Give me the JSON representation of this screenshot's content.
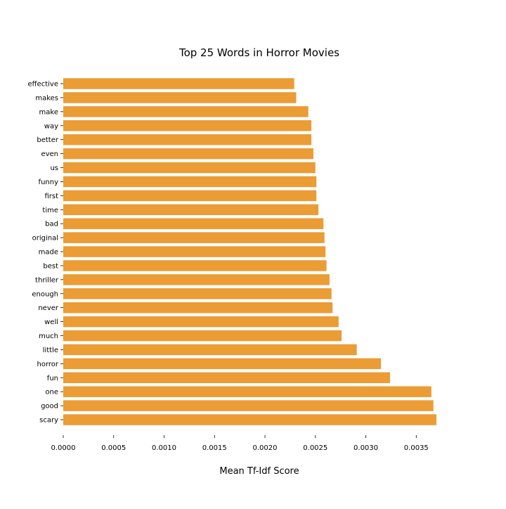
{
  "chart_data": {
    "type": "bar",
    "orientation": "horizontal",
    "title": "Top 25 Words in Horror Movies",
    "xlabel": "Mean Tf-Idf Score",
    "ylabel": "",
    "xlim": [
      0,
      0.0037
    ],
    "xticks": [
      "0.0000",
      "0.0005",
      "0.0010",
      "0.0015",
      "0.0020",
      "0.0025",
      "0.0030",
      "0.0035"
    ],
    "grid": false,
    "bar_color": "#eb9c35",
    "categories": [
      "scary",
      "good",
      "one",
      "fun",
      "horror",
      "little",
      "much",
      "well",
      "never",
      "enough",
      "thriller",
      "best",
      "made",
      "original",
      "bad",
      "time",
      "first",
      "funny",
      "us",
      "even",
      "better",
      "way",
      "make",
      "makes",
      "effective"
    ],
    "values": [
      0.0037,
      0.00367,
      0.00365,
      0.00324,
      0.00315,
      0.00291,
      0.00276,
      0.00273,
      0.00267,
      0.00266,
      0.00264,
      0.00261,
      0.0026,
      0.00259,
      0.00258,
      0.00253,
      0.00251,
      0.00251,
      0.0025,
      0.00248,
      0.00246,
      0.00246,
      0.00243,
      0.00231,
      0.00229
    ]
  }
}
